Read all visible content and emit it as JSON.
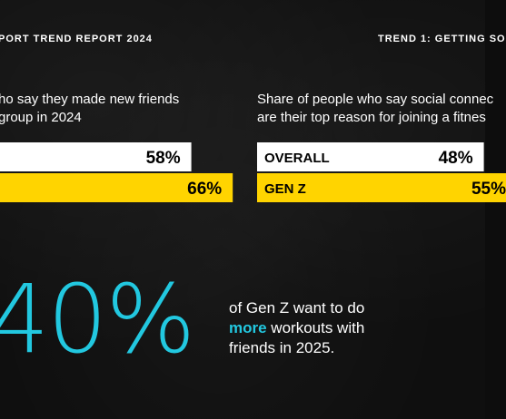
{
  "header": {
    "left_kicker": "PORT TREND REPORT 2024",
    "right_kicker": "TREND 1: GETTING SO"
  },
  "left_panel": {
    "desc_lines": [
      "ho say they made new friends",
      "group in 2024"
    ]
  },
  "right_panel": {
    "desc_lines": [
      "Share of people who say social connec",
      "are their top reason for joining a fitnes"
    ]
  },
  "colors": {
    "background": "#0f0f0f",
    "bar_white": "#ffffff",
    "bar_yellow": "#ffd400",
    "accent_cyan": "#22c8e0"
  },
  "chart_data": [
    {
      "type": "bar",
      "orientation": "horizontal",
      "categories": [
        "",
        ""
      ],
      "values": [
        58,
        66
      ],
      "value_labels": [
        "58%",
        "66%"
      ],
      "colors": [
        "#ffffff",
        "#ffd400"
      ],
      "xlim": [
        0,
        100
      ]
    },
    {
      "type": "bar",
      "orientation": "horizontal",
      "categories": [
        "OVERALL",
        "GEN Z"
      ],
      "values": [
        48,
        55
      ],
      "value_labels": [
        "48%",
        "55%"
      ],
      "colors": [
        "#ffffff",
        "#ffd400"
      ],
      "xlim": [
        0,
        100
      ]
    }
  ],
  "callout": {
    "big_number": "40%",
    "line1": "of Gen Z want to do",
    "line2_highlight": "more",
    "line2_rest": " workouts with",
    "line3": "friends in 2025."
  }
}
